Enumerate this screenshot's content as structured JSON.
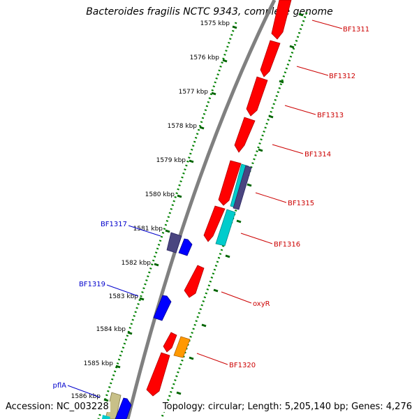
{
  "title": "Bacteroides fragilis NCTC 9343, complete genome",
  "accession_text": "Accession: NC_003228",
  "summary_text": "Topology: circular; Length: 5,205,140 bp; Genes: 4,276",
  "colors": {
    "backbone": "#808080",
    "forward_gene": "#ff0000",
    "reverse_gene": "#0000ff",
    "dark_feature": "#4a4580",
    "cyan_feature": "#00cccc",
    "orange_feature": "#ff9900",
    "khaki_feature": "#c8c088",
    "tick_dots": "#008000",
    "forward_label": "#cc0000",
    "reverse_label": "#0000cc"
  },
  "ruler_ticks": [
    "1575 kbp",
    "1576 kbp",
    "1577 kbp",
    "1578 kbp",
    "1579 kbp",
    "1580 kbp",
    "1581 kbp",
    "1582 kbp",
    "1583 kbp",
    "1584 kbp",
    "1585 kbp",
    "1586 kbp"
  ],
  "forward_gene_labels": [
    "BF1311",
    "BF1312",
    "BF1313",
    "BF1314",
    "BF1315",
    "BF1316",
    "oxyR",
    "BF1320"
  ],
  "reverse_gene_labels": [
    "BF1317",
    "BF1319",
    "pflA"
  ]
}
